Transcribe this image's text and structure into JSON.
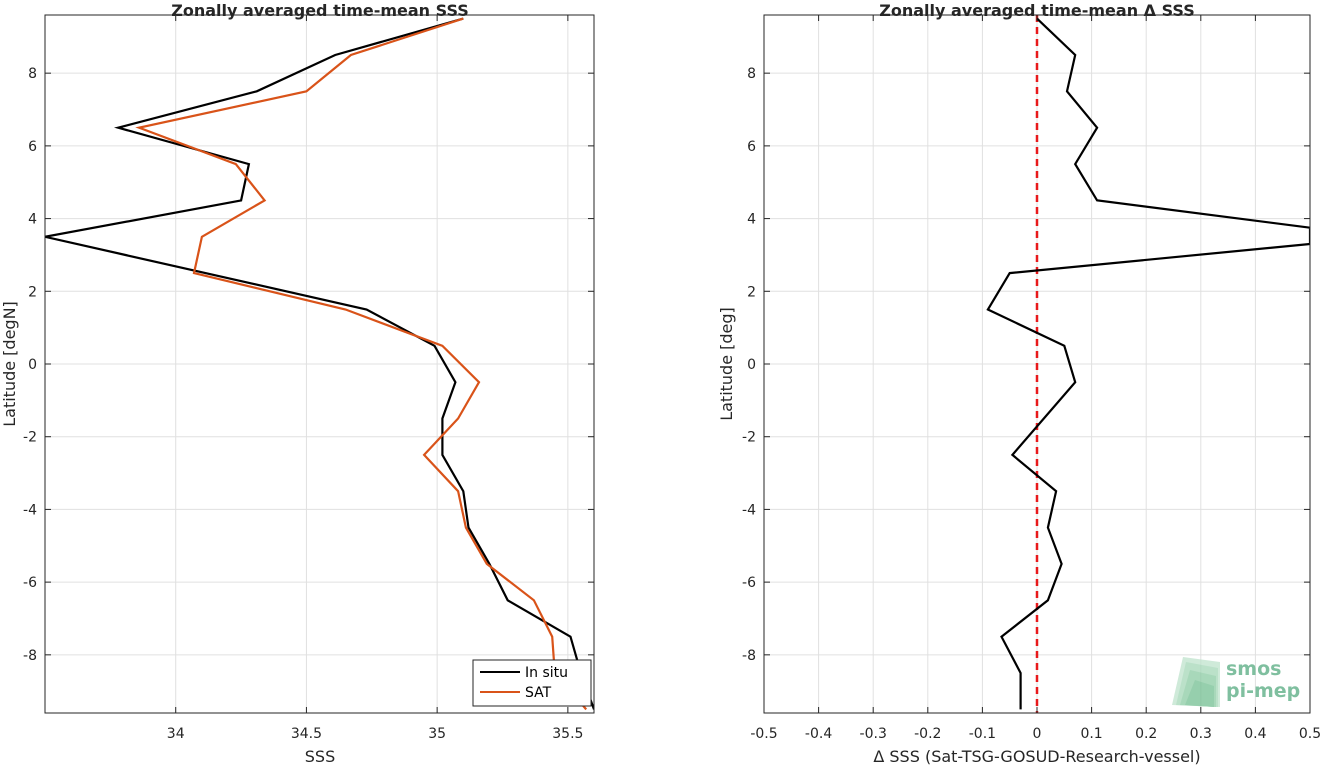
{
  "chart_data": [
    {
      "type": "line",
      "title": "Zonally averaged time-mean SSS",
      "xlabel": "SSS",
      "ylabel": "Latitude [degN]",
      "xlim": [
        33.5,
        35.6
      ],
      "ylim": [
        -9.6,
        9.6
      ],
      "xticks": [
        34,
        34.5,
        35,
        35.5
      ],
      "xtick_labels": [
        "34",
        "34.5",
        "35",
        "35.5"
      ],
      "yticks": [
        -8,
        -6,
        -4,
        -2,
        0,
        2,
        4,
        6,
        8
      ],
      "ytick_labels": [
        "-8",
        "-6",
        "-4",
        "-2",
        "0",
        "2",
        "4",
        "6",
        "8"
      ],
      "grid": true,
      "legend_position": "bottom-right",
      "series": [
        {
          "name": "In situ",
          "color": "#000000",
          "x": [
            35.1,
            34.61,
            34.31,
            33.78,
            34.28,
            34.25,
            33.5,
            34.73,
            34.99,
            35.07,
            35.02,
            35.02,
            35.1,
            35.12,
            35.2,
            35.27,
            35.51,
            35.55,
            35.6
          ],
          "y": [
            9.5,
            8.5,
            7.5,
            6.5,
            5.5,
            4.5,
            3.5,
            1.5,
            0.5,
            -0.5,
            -1.5,
            -2.5,
            -3.5,
            -4.5,
            -5.5,
            -6.5,
            -7.5,
            -8.5,
            -9.5
          ]
        },
        {
          "name": "SAT",
          "color": "#d95319",
          "x": [
            35.1,
            34.67,
            34.5,
            33.86,
            34.23,
            34.34,
            34.1,
            34.07,
            34.65,
            35.02,
            35.16,
            35.08,
            34.95,
            35.08,
            35.11,
            35.19,
            35.37,
            35.44,
            35.45,
            35.57
          ],
          "y": [
            9.5,
            8.5,
            7.5,
            6.5,
            5.5,
            4.5,
            3.5,
            2.5,
            1.5,
            0.5,
            -0.5,
            -1.5,
            -2.5,
            -3.5,
            -4.5,
            -5.5,
            -6.5,
            -7.5,
            -8.5,
            -9.5
          ]
        }
      ]
    },
    {
      "type": "line",
      "title": "Zonally averaged time-mean Δ SSS",
      "xlabel": "Δ SSS (Sat-TSG-GOSUD-Research-vessel)",
      "ylabel": "Latitude [deg]",
      "xlim": [
        -0.5,
        0.5
      ],
      "ylim": [
        -9.6,
        9.6
      ],
      "xticks": [
        -0.5,
        -0.4,
        -0.3,
        -0.2,
        -0.1,
        0,
        0.1,
        0.2,
        0.3,
        0.4,
        0.5
      ],
      "xtick_labels": [
        "-0.5",
        "-0.4",
        "-0.3",
        "-0.2",
        "-0.1",
        "0",
        "0.1",
        "0.2",
        "0.3",
        "0.4",
        "0.5"
      ],
      "yticks": [
        -8,
        -6,
        -4,
        -2,
        0,
        2,
        4,
        6,
        8
      ],
      "ytick_labels": [
        "-8",
        "-6",
        "-4",
        "-2",
        "0",
        "2",
        "4",
        "6",
        "8"
      ],
      "grid": true,
      "reference_line": {
        "x": 0,
        "color": "#e8191b",
        "style": "dashed"
      },
      "series": [
        {
          "color": "#000000",
          "x": [
            0,
            0.07,
            0.055,
            0.11,
            0.07,
            0.11,
            0.5,
            0.5,
            -0.05,
            -0.09,
            0.05,
            0.07,
            -0.045,
            0.035,
            0.02,
            0.045,
            0.02,
            -0.065,
            -0.03,
            -0.03
          ],
          "y": [
            9.5,
            8.5,
            7.5,
            6.5,
            5.5,
            4.5,
            3.75,
            3.3,
            2.5,
            1.5,
            0.5,
            -0.5,
            -2.5,
            -3.5,
            -4.5,
            -5.5,
            -6.5,
            -7.5,
            -8.5,
            -9.5
          ]
        }
      ]
    }
  ],
  "logo": {
    "line1": "smos",
    "line2": "pi-mep",
    "color": "#7fbf9f"
  }
}
